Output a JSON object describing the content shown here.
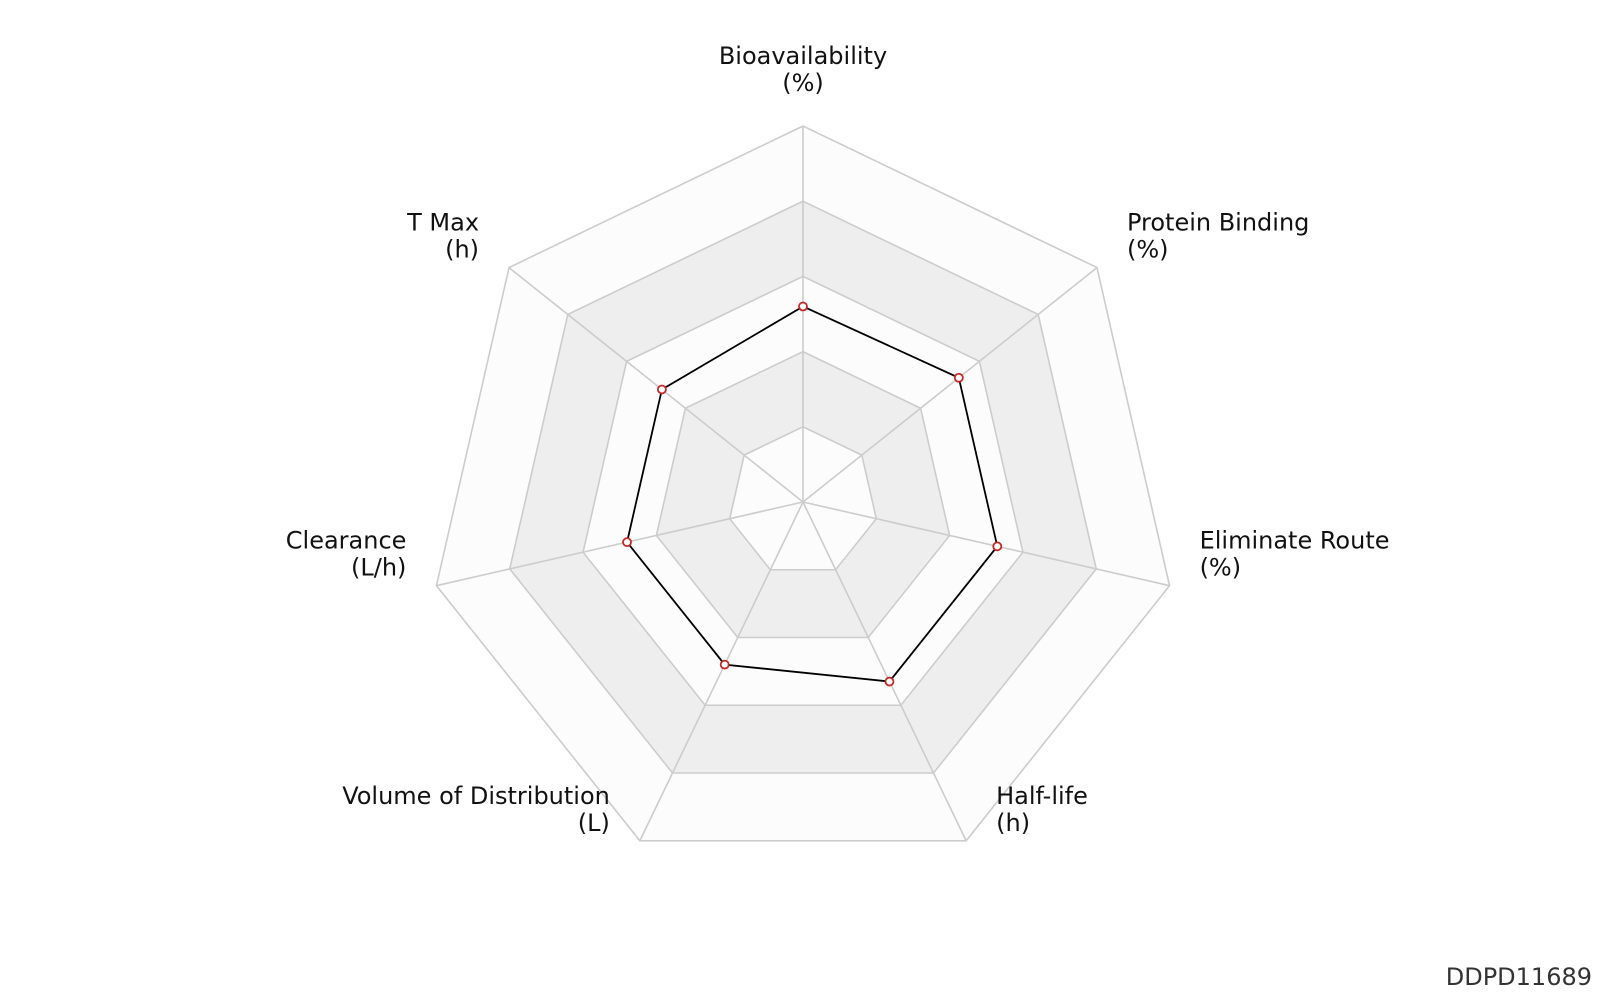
{
  "chart_data": {
    "type": "radar",
    "axes": [
      {
        "name": "Bioavailability",
        "unit": "(%)"
      },
      {
        "name": "Protein Binding",
        "unit": "(%)"
      },
      {
        "name": "Eliminate Route",
        "unit": "(%)"
      },
      {
        "name": "Half-life",
        "unit": "(h)"
      },
      {
        "name": "Volume of Distribution",
        "unit": "(L)"
      },
      {
        "name": "Clearance",
        "unit": "(L/h)"
      },
      {
        "name": "T Max",
        "unit": "(h)"
      }
    ],
    "levels": 5,
    "series": [
      {
        "values": [
          0.52,
          0.53,
          0.53,
          0.53,
          0.48,
          0.48,
          0.48
        ]
      }
    ],
    "colors": {
      "grid": "#cccccc",
      "band_shade": "#eeeeee",
      "band_light": "#fcfcfc",
      "line": "#000000",
      "marker": "#c62828"
    }
  },
  "watermark": "DDPD11689"
}
